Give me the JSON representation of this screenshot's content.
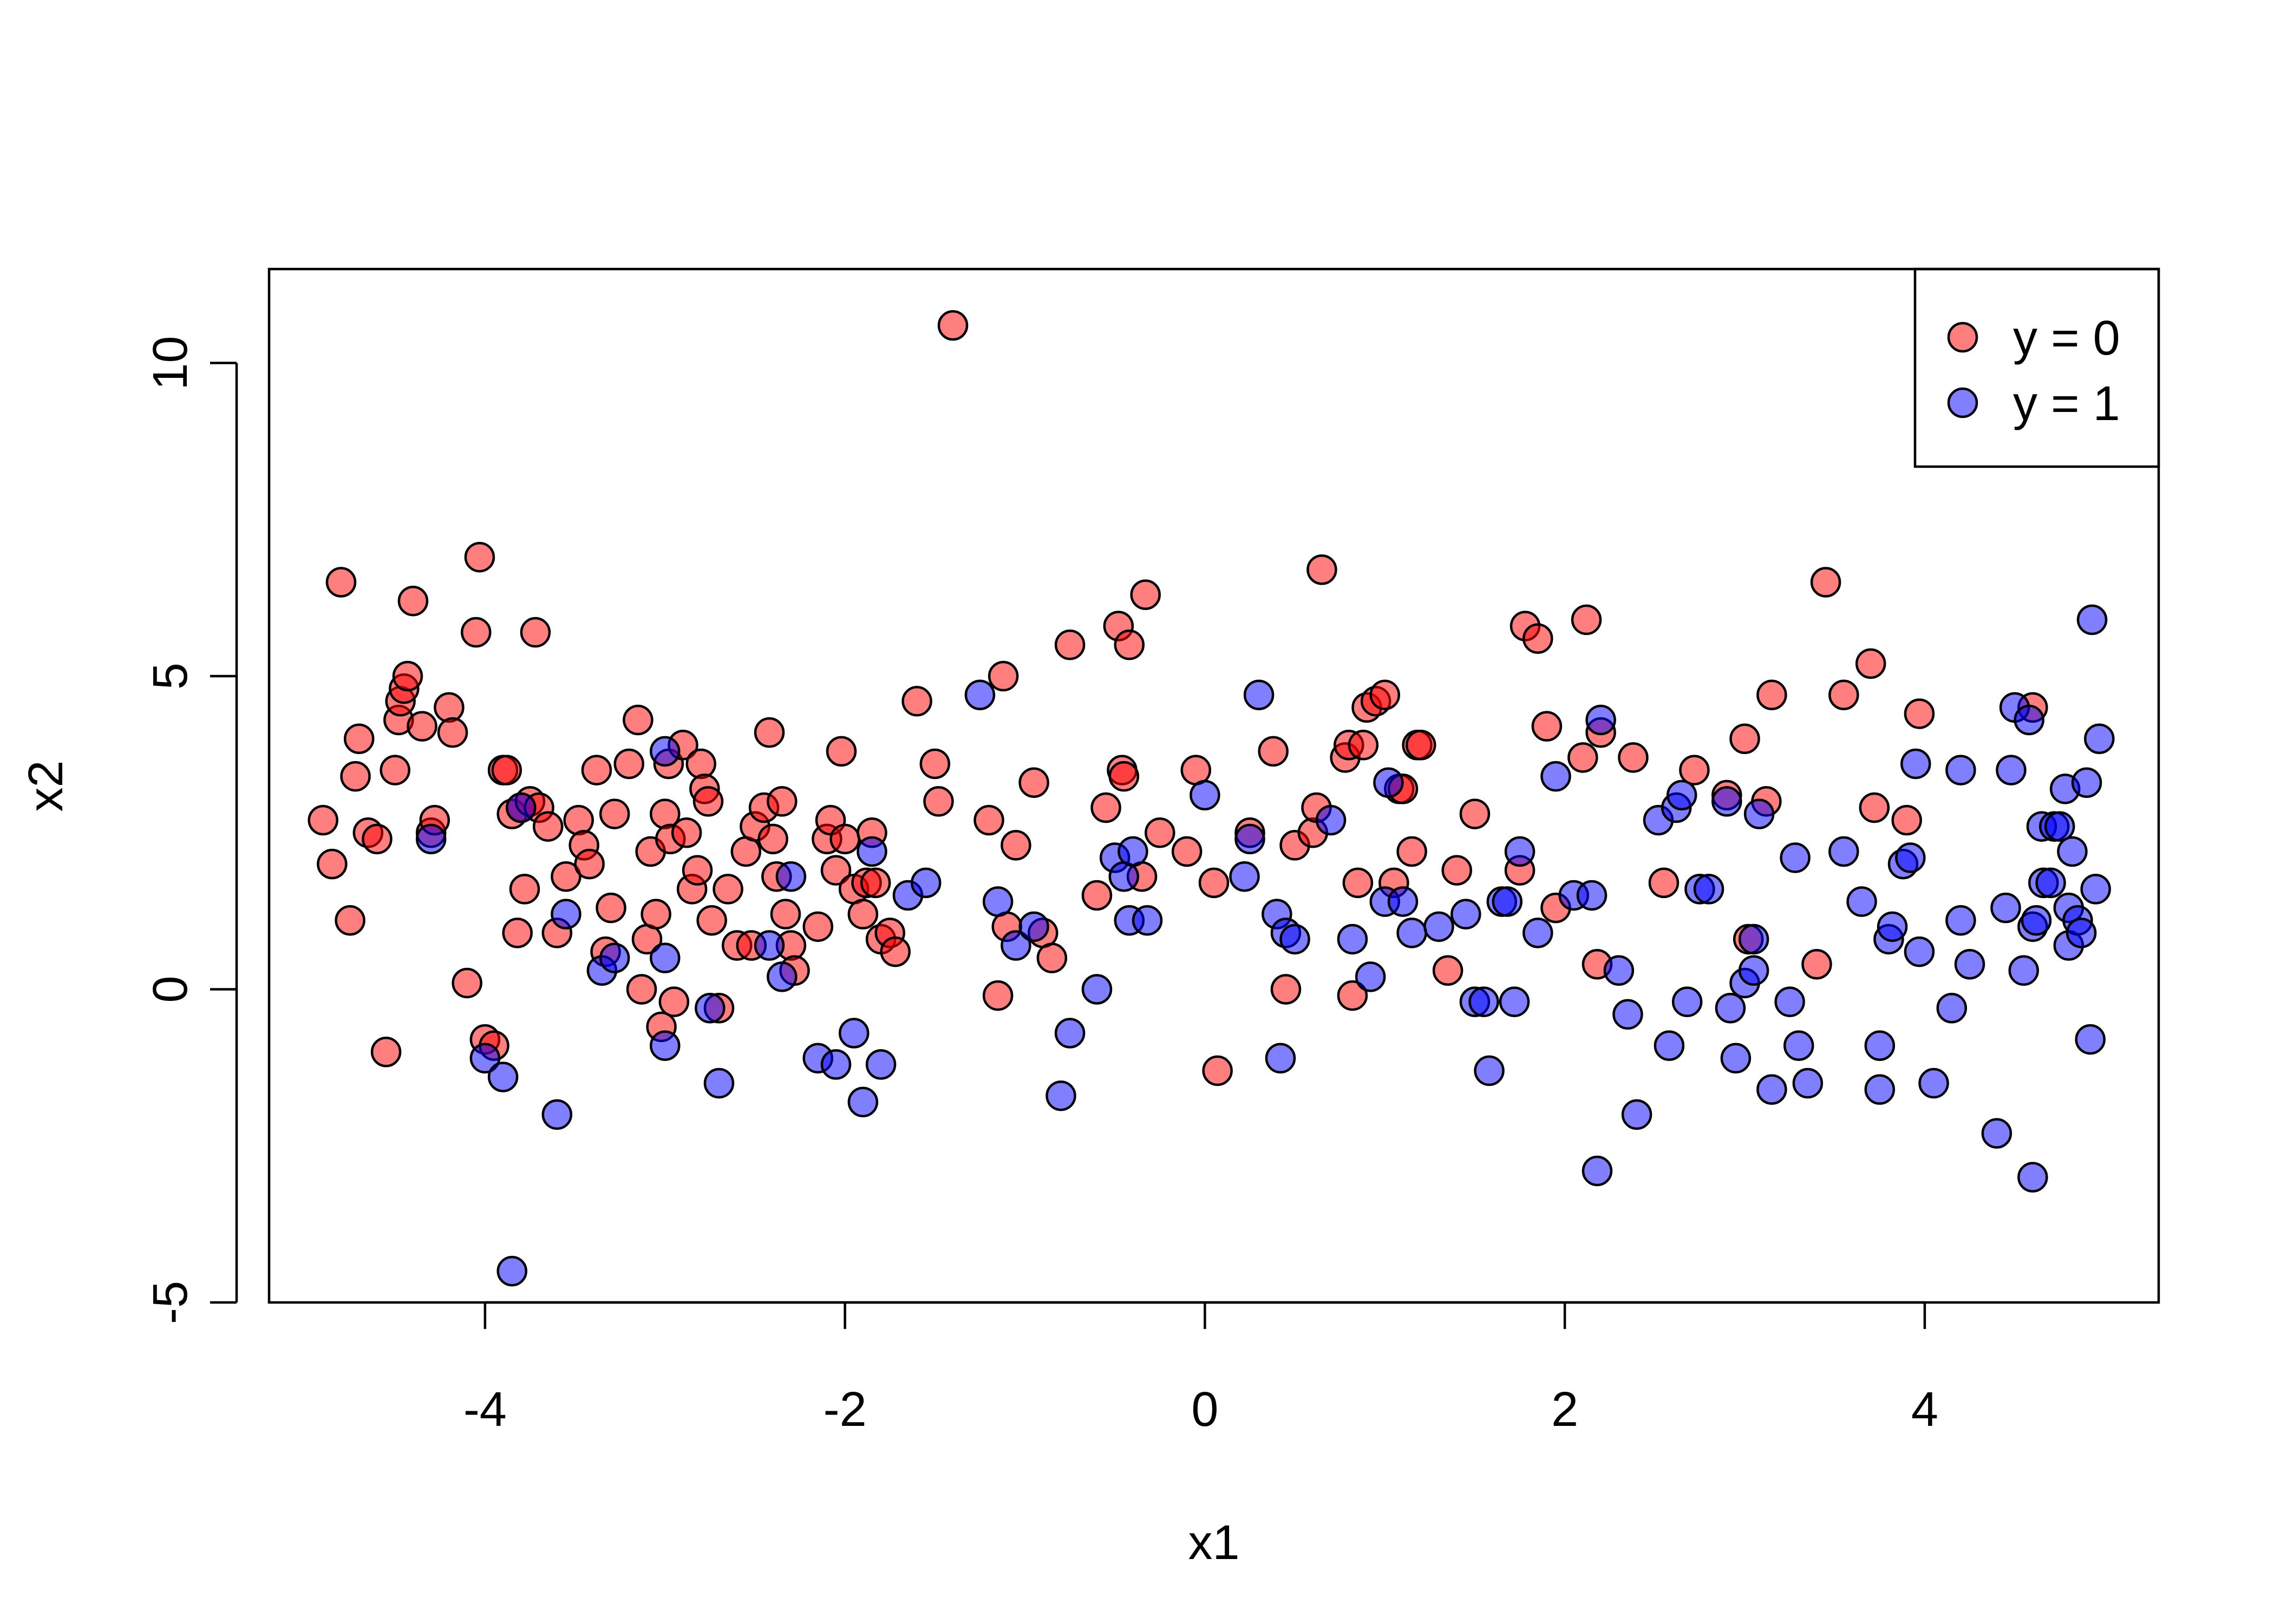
{
  "chart_data": {
    "type": "scatter",
    "title": "",
    "xlabel": "x1",
    "ylabel": "x2",
    "xlim": [
      -5.2,
      5.3
    ],
    "ylim": [
      -5.0,
      11.5
    ],
    "x_ticks": [
      -4,
      -2,
      0,
      2,
      4
    ],
    "y_ticks": [
      -5,
      0,
      5,
      10
    ],
    "x_tick_labels": [
      "-4",
      "-2",
      "0",
      "2",
      "4"
    ],
    "y_tick_labels": [
      "-5",
      "0",
      "5",
      "10"
    ],
    "grid": false,
    "legend": {
      "position": "top-right"
    },
    "series": [
      {
        "name": "y = 0",
        "color": "#ff0000",
        "opacity": 0.5,
        "points": [
          [
            -4.9,
            2.7
          ],
          [
            -4.85,
            2.0
          ],
          [
            -4.8,
            6.5
          ],
          [
            -4.75,
            1.1
          ],
          [
            -4.72,
            3.4
          ],
          [
            -4.7,
            4.0
          ],
          [
            -4.65,
            2.5
          ],
          [
            -4.6,
            2.4
          ],
          [
            -4.55,
            -1.0
          ],
          [
            -4.5,
            3.5
          ],
          [
            -4.48,
            4.3
          ],
          [
            -4.47,
            4.6
          ],
          [
            -4.45,
            4.8
          ],
          [
            -4.43,
            5.0
          ],
          [
            -4.4,
            6.2
          ],
          [
            -4.35,
            4.2
          ],
          [
            -4.3,
            2.5
          ],
          [
            -4.28,
            2.7
          ],
          [
            -4.2,
            4.5
          ],
          [
            -4.18,
            4.1
          ],
          [
            -4.1,
            0.1
          ],
          [
            -4.05,
            5.7
          ],
          [
            -4.03,
            6.9
          ],
          [
            -4.0,
            -0.8
          ],
          [
            -3.95,
            -0.9
          ],
          [
            -3.9,
            3.5
          ],
          [
            -3.88,
            3.5
          ],
          [
            -3.85,
            2.8
          ],
          [
            -3.82,
            0.9
          ],
          [
            -3.8,
            2.9
          ],
          [
            -3.78,
            1.6
          ],
          [
            -3.75,
            3.0
          ],
          [
            -3.72,
            5.7
          ],
          [
            -3.7,
            2.9
          ],
          [
            -3.65,
            2.6
          ],
          [
            -3.6,
            0.9
          ],
          [
            -3.55,
            1.8
          ],
          [
            -3.48,
            2.7
          ],
          [
            -3.45,
            2.3
          ],
          [
            -3.42,
            2.0
          ],
          [
            -3.38,
            3.5
          ],
          [
            -3.33,
            0.6
          ],
          [
            -3.3,
            1.3
          ],
          [
            -3.28,
            2.8
          ],
          [
            -3.2,
            3.6
          ],
          [
            -3.15,
            4.3
          ],
          [
            -3.13,
            0.0
          ],
          [
            -3.1,
            0.8
          ],
          [
            -3.08,
            2.2
          ],
          [
            -3.05,
            1.2
          ],
          [
            -3.02,
            -0.6
          ],
          [
            -3.0,
            2.8
          ],
          [
            -2.98,
            3.6
          ],
          [
            -2.97,
            2.4
          ],
          [
            -2.95,
            -0.2
          ],
          [
            -2.9,
            3.9
          ],
          [
            -2.88,
            2.5
          ],
          [
            -2.85,
            1.6
          ],
          [
            -2.82,
            1.9
          ],
          [
            -2.8,
            3.6
          ],
          [
            -2.78,
            3.2
          ],
          [
            -2.76,
            3.0
          ],
          [
            -2.74,
            1.1
          ],
          [
            -2.7,
            -0.3
          ],
          [
            -2.65,
            1.6
          ],
          [
            -2.6,
            0.7
          ],
          [
            -2.55,
            2.2
          ],
          [
            -2.52,
            0.7
          ],
          [
            -2.5,
            2.6
          ],
          [
            -2.45,
            2.9
          ],
          [
            -2.42,
            4.1
          ],
          [
            -2.4,
            2.4
          ],
          [
            -2.38,
            1.8
          ],
          [
            -2.35,
            3.0
          ],
          [
            -2.33,
            1.2
          ],
          [
            -2.3,
            0.7
          ],
          [
            -2.28,
            0.3
          ],
          [
            -2.15,
            1.0
          ],
          [
            -2.1,
            2.4
          ],
          [
            -2.08,
            2.7
          ],
          [
            -2.05,
            1.9
          ],
          [
            -2.02,
            3.8
          ],
          [
            -2.0,
            2.4
          ],
          [
            -1.95,
            1.6
          ],
          [
            -1.9,
            1.2
          ],
          [
            -1.88,
            1.7
          ],
          [
            -1.85,
            2.5
          ],
          [
            -1.83,
            1.7
          ],
          [
            -1.8,
            0.8
          ],
          [
            -1.75,
            0.9
          ],
          [
            -1.72,
            0.6
          ],
          [
            -1.6,
            4.6
          ],
          [
            -1.5,
            3.6
          ],
          [
            -1.48,
            3.0
          ],
          [
            -1.4,
            10.6
          ],
          [
            -1.2,
            2.7
          ],
          [
            -1.15,
            -0.1
          ],
          [
            -1.12,
            5.0
          ],
          [
            -1.1,
            1.0
          ],
          [
            -1.05,
            2.3
          ],
          [
            -0.95,
            3.3
          ],
          [
            -0.9,
            0.9
          ],
          [
            -0.85,
            0.5
          ],
          [
            -0.75,
            5.5
          ],
          [
            -0.6,
            1.5
          ],
          [
            -0.55,
            2.9
          ],
          [
            -0.48,
            5.8
          ],
          [
            -0.46,
            3.5
          ],
          [
            -0.45,
            3.4
          ],
          [
            -0.42,
            5.5
          ],
          [
            -0.35,
            1.8
          ],
          [
            -0.33,
            6.3
          ],
          [
            -0.25,
            2.5
          ],
          [
            -0.1,
            2.2
          ],
          [
            -0.05,
            3.5
          ],
          [
            0.05,
            1.7
          ],
          [
            0.07,
            -1.3
          ],
          [
            0.25,
            2.5
          ],
          [
            0.38,
            3.8
          ],
          [
            0.45,
            0.0
          ],
          [
            0.5,
            2.3
          ],
          [
            0.6,
            2.5
          ],
          [
            0.62,
            2.9
          ],
          [
            0.65,
            6.7
          ],
          [
            0.78,
            3.7
          ],
          [
            0.8,
            3.9
          ],
          [
            0.82,
            -0.1
          ],
          [
            0.85,
            1.7
          ],
          [
            0.88,
            3.9
          ],
          [
            0.9,
            4.5
          ],
          [
            0.95,
            4.6
          ],
          [
            1.0,
            4.7
          ],
          [
            1.05,
            1.7
          ],
          [
            1.08,
            3.2
          ],
          [
            1.1,
            3.2
          ],
          [
            1.15,
            2.2
          ],
          [
            1.18,
            3.9
          ],
          [
            1.2,
            3.9
          ],
          [
            1.35,
            0.3
          ],
          [
            1.4,
            1.9
          ],
          [
            1.5,
            2.8
          ],
          [
            1.75,
            1.9
          ],
          [
            1.78,
            5.8
          ],
          [
            1.85,
            5.6
          ],
          [
            1.9,
            4.2
          ],
          [
            1.95,
            1.3
          ],
          [
            2.1,
            3.7
          ],
          [
            2.12,
            5.9
          ],
          [
            2.18,
            0.4
          ],
          [
            2.2,
            4.1
          ],
          [
            2.38,
            3.7
          ],
          [
            2.55,
            1.7
          ],
          [
            2.72,
            3.5
          ],
          [
            2.9,
            3.1
          ],
          [
            3.0,
            4.0
          ],
          [
            3.02,
            0.8
          ],
          [
            3.12,
            3.0
          ],
          [
            3.15,
            4.7
          ],
          [
            3.4,
            0.4
          ],
          [
            3.45,
            6.5
          ],
          [
            3.55,
            4.7
          ],
          [
            3.7,
            5.2
          ],
          [
            3.72,
            2.9
          ],
          [
            3.9,
            2.7
          ],
          [
            3.97,
            4.4
          ],
          [
            4.6,
            4.5
          ]
        ]
      },
      {
        "name": "y = 1",
        "color": "#0000ff",
        "opacity": 0.5,
        "points": [
          [
            -4.3,
            2.4
          ],
          [
            -4.0,
            -1.1
          ],
          [
            -3.9,
            -1.4
          ],
          [
            -3.85,
            -4.5
          ],
          [
            -3.8,
            2.9
          ],
          [
            -3.6,
            -2.0
          ],
          [
            -3.55,
            1.2
          ],
          [
            -3.35,
            0.3
          ],
          [
            -3.28,
            0.5
          ],
          [
            -3.0,
            3.8
          ],
          [
            -3.0,
            0.5
          ],
          [
            -3.0,
            -0.9
          ],
          [
            -2.75,
            -0.3
          ],
          [
            -2.7,
            -1.5
          ],
          [
            -2.42,
            0.7
          ],
          [
            -2.35,
            0.2
          ],
          [
            -2.3,
            1.8
          ],
          [
            -2.15,
            -1.1
          ],
          [
            -2.05,
            -1.2
          ],
          [
            -1.95,
            -0.7
          ],
          [
            -1.9,
            -1.8
          ],
          [
            -1.85,
            2.2
          ],
          [
            -1.8,
            -1.2
          ],
          [
            -1.65,
            1.5
          ],
          [
            -1.55,
            1.7
          ],
          [
            -1.25,
            4.7
          ],
          [
            -1.15,
            1.4
          ],
          [
            -1.05,
            0.7
          ],
          [
            -0.95,
            1.0
          ],
          [
            -0.8,
            -1.7
          ],
          [
            -0.75,
            -0.7
          ],
          [
            -0.6,
            0.0
          ],
          [
            -0.5,
            2.1
          ],
          [
            -0.45,
            1.8
          ],
          [
            -0.42,
            1.1
          ],
          [
            -0.4,
            2.2
          ],
          [
            -0.32,
            1.1
          ],
          [
            0.0,
            3.1
          ],
          [
            0.22,
            1.8
          ],
          [
            0.25,
            2.4
          ],
          [
            0.3,
            4.7
          ],
          [
            0.4,
            1.2
          ],
          [
            0.42,
            -1.1
          ],
          [
            0.45,
            0.9
          ],
          [
            0.5,
            0.8
          ],
          [
            0.7,
            2.7
          ],
          [
            0.82,
            0.8
          ],
          [
            0.92,
            0.2
          ],
          [
            1.0,
            1.4
          ],
          [
            1.02,
            3.3
          ],
          [
            1.1,
            1.4
          ],
          [
            1.15,
            0.9
          ],
          [
            1.3,
            1.0
          ],
          [
            1.45,
            1.2
          ],
          [
            1.5,
            -0.2
          ],
          [
            1.55,
            -0.2
          ],
          [
            1.58,
            -1.3
          ],
          [
            1.65,
            1.4
          ],
          [
            1.68,
            1.4
          ],
          [
            1.72,
            -0.2
          ],
          [
            1.75,
            2.2
          ],
          [
            1.85,
            0.9
          ],
          [
            1.95,
            3.4
          ],
          [
            2.05,
            1.5
          ],
          [
            2.15,
            1.5
          ],
          [
            2.18,
            -2.9
          ],
          [
            2.2,
            4.3
          ],
          [
            2.3,
            0.3
          ],
          [
            2.35,
            -0.4
          ],
          [
            2.4,
            -2.0
          ],
          [
            2.52,
            2.7
          ],
          [
            2.58,
            -0.9
          ],
          [
            2.62,
            2.9
          ],
          [
            2.65,
            3.1
          ],
          [
            2.68,
            -0.2
          ],
          [
            2.75,
            1.6
          ],
          [
            2.8,
            1.6
          ],
          [
            2.9,
            3.0
          ],
          [
            2.92,
            -0.3
          ],
          [
            2.95,
            -1.1
          ],
          [
            3.0,
            0.1
          ],
          [
            3.05,
            0.8
          ],
          [
            3.05,
            0.3
          ],
          [
            3.08,
            2.8
          ],
          [
            3.15,
            -1.6
          ],
          [
            3.25,
            -0.2
          ],
          [
            3.28,
            2.1
          ],
          [
            3.3,
            -0.9
          ],
          [
            3.35,
            -1.5
          ],
          [
            3.55,
            2.2
          ],
          [
            3.65,
            1.4
          ],
          [
            3.75,
            -0.9
          ],
          [
            3.75,
            -1.6
          ],
          [
            3.8,
            0.8
          ],
          [
            3.82,
            1.0
          ],
          [
            3.88,
            2.0
          ],
          [
            3.92,
            2.1
          ],
          [
            3.95,
            3.6
          ],
          [
            3.97,
            0.6
          ],
          [
            4.05,
            -1.5
          ],
          [
            4.15,
            -0.3
          ],
          [
            4.2,
            1.1
          ],
          [
            4.2,
            3.5
          ],
          [
            4.25,
            0.4
          ],
          [
            4.4,
            -2.3
          ],
          [
            4.45,
            1.3
          ],
          [
            4.48,
            3.5
          ],
          [
            4.5,
            4.5
          ],
          [
            4.55,
            0.3
          ],
          [
            4.58,
            4.3
          ],
          [
            4.6,
            -3.0
          ],
          [
            4.6,
            1.0
          ],
          [
            4.62,
            1.1
          ],
          [
            4.65,
            2.6
          ],
          [
            4.66,
            1.7
          ],
          [
            4.7,
            1.7
          ],
          [
            4.72,
            2.6
          ],
          [
            4.75,
            2.6
          ],
          [
            4.78,
            3.2
          ],
          [
            4.8,
            1.3
          ],
          [
            4.8,
            0.7
          ],
          [
            4.82,
            2.2
          ],
          [
            4.85,
            1.1
          ],
          [
            4.87,
            0.9
          ],
          [
            4.9,
            3.3
          ],
          [
            4.92,
            -0.8
          ],
          [
            4.93,
            5.9
          ],
          [
            4.95,
            1.6
          ],
          [
            4.97,
            4.0
          ]
        ]
      }
    ]
  }
}
